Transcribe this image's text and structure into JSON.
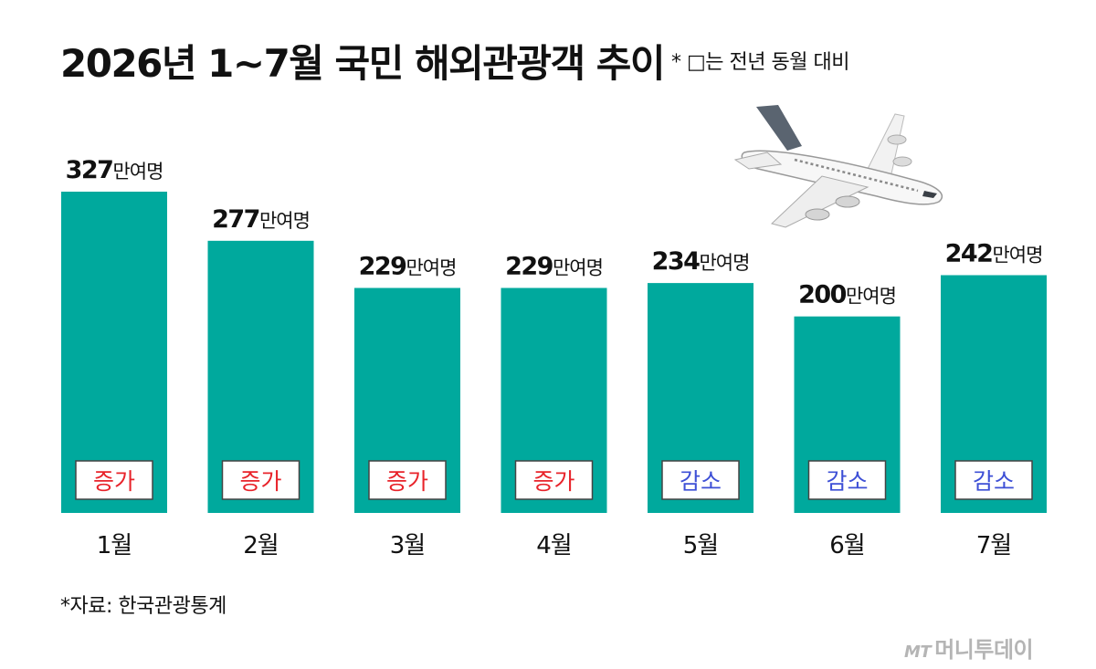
{
  "title": "2026년 1~7월 국민 해외관광객 추이",
  "note": "* □는 전년 동월 대비",
  "source": "*자료: 한국관광통계",
  "logo": "MT 머니투데이",
  "colors": {
    "bar": "#00a99d",
    "increase": "#e8232a",
    "decrease": "#3d4fd6"
  },
  "icons": {
    "plane": "airplane-icon"
  },
  "chart_data": {
    "type": "bar",
    "unit": "만여명",
    "categories": [
      "1월",
      "2월",
      "3월",
      "4월",
      "5월",
      "6월",
      "7월"
    ],
    "values": [
      327,
      277,
      229,
      229,
      234,
      200,
      242
    ],
    "badges": [
      "증가",
      "증가",
      "증가",
      "증가",
      "감소",
      "감소",
      "감소"
    ]
  }
}
